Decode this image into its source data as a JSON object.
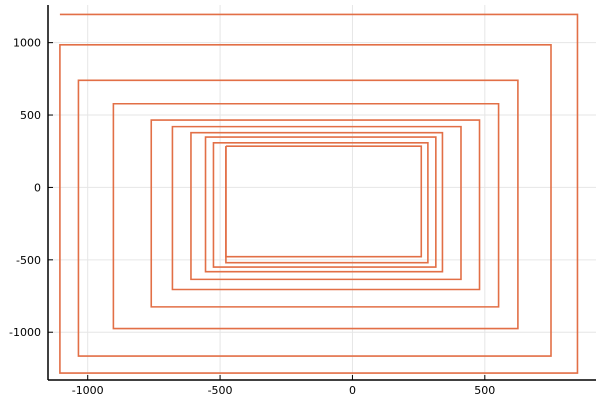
{
  "chart_data": {
    "type": "line",
    "title": "",
    "xlabel": "",
    "ylabel": "",
    "xlim": [
      -1150,
      920
    ],
    "ylim": [
      -1330,
      1260
    ],
    "x_ticks": [
      -1000,
      -500,
      0,
      500
    ],
    "x_tick_labels": [
      "-1000",
      "-500",
      "0",
      "500"
    ],
    "y_ticks": [
      -1000,
      -500,
      0,
      500,
      1000
    ],
    "y_tick_labels": [
      "-1000",
      "-500",
      "0",
      "500",
      "1000"
    ],
    "grid": true,
    "legend": "none",
    "series": [
      {
        "color": "#e26f46",
        "x": [
          -1105,
          850,
          850,
          -1105,
          -1105,
          750,
          750,
          -1035,
          -1035,
          625,
          625,
          -903,
          -903,
          552,
          552,
          -760,
          -760,
          480,
          480,
          -680,
          -680,
          410,
          410,
          -610,
          -610,
          340,
          340,
          -555,
          -555,
          315,
          315,
          -525,
          -525,
          285,
          285,
          -478,
          -478
        ],
        "y": [
          1195,
          1195,
          -1282,
          -1282,
          985,
          985,
          -1165,
          -1165,
          740,
          740,
          -975,
          -975,
          578,
          578,
          -825,
          -825,
          465,
          465,
          -705,
          -705,
          420,
          420,
          -635,
          -635,
          378,
          378,
          -582,
          -582,
          348,
          348,
          -550,
          -550,
          308,
          308,
          -520,
          -520,
          285
        ]
      },
      {
        "color": "#e26f46",
        "x": [
          -478,
          260,
          260,
          -478,
          -478
        ],
        "y": [
          285,
          285,
          -478,
          -478,
          285
        ]
      }
    ]
  }
}
